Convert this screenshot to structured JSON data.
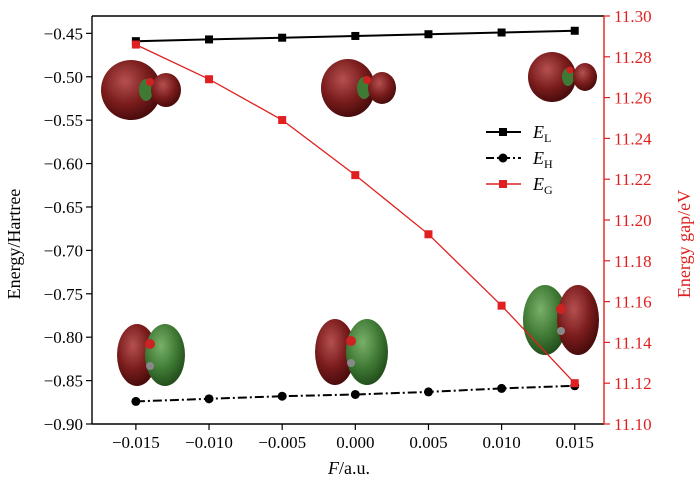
{
  "chart_data": {
    "type": "line",
    "x": [
      -0.015,
      -0.01,
      -0.005,
      0.0,
      0.005,
      0.01,
      0.015
    ],
    "xlabel_italic": "F",
    "xlabel_rest": "/a.u.",
    "ylabel": "Energy/Hartree",
    "y2label": "Energy gap/eV",
    "xlim": [
      -0.018,
      0.017
    ],
    "ylim": [
      -0.9,
      -0.43
    ],
    "y2lim": [
      11.1,
      11.3
    ],
    "xticks": [
      -0.015,
      -0.01,
      -0.005,
      0.0,
      0.005,
      0.01,
      0.015
    ],
    "xtick_labels": [
      "−0.015",
      "−0.010",
      "−0.005",
      "0.000",
      "0.005",
      "0.010",
      "0.015"
    ],
    "yticks": [
      -0.45,
      -0.5,
      -0.55,
      -0.6,
      -0.65,
      -0.7,
      -0.75,
      -0.8,
      -0.85,
      -0.9
    ],
    "ytick_labels": [
      "−0.45",
      "−0.50",
      "−0.55",
      "−0.60",
      "−0.65",
      "−0.70",
      "−0.75",
      "−0.80",
      "−0.85",
      "−0.90"
    ],
    "y2ticks": [
      11.1,
      11.12,
      11.14,
      11.16,
      11.18,
      11.2,
      11.22,
      11.24,
      11.26,
      11.28,
      11.3
    ],
    "y2tick_labels": [
      "11.10",
      "11.12",
      "11.14",
      "11.16",
      "11.18",
      "11.20",
      "11.22",
      "11.24",
      "11.26",
      "11.28",
      "11.30"
    ],
    "legend_position": "right",
    "series": [
      {
        "name": "E",
        "sub": "L",
        "axis": "left",
        "color": "#000000",
        "marker": "square",
        "dash": "solid",
        "values": [
          -0.459,
          -0.457,
          -0.455,
          -0.453,
          -0.451,
          -0.449,
          -0.447
        ]
      },
      {
        "name": "E",
        "sub": "H",
        "axis": "left",
        "color": "#000000",
        "marker": "circle",
        "dash": "dashdot",
        "values": [
          -0.874,
          -0.871,
          -0.868,
          -0.866,
          -0.863,
          -0.859,
          -0.856
        ]
      },
      {
        "name": "E",
        "sub": "G",
        "axis": "right",
        "color": "#e02020",
        "marker": "square",
        "dash": "solid",
        "values": [
          11.286,
          11.269,
          11.249,
          11.222,
          11.193,
          11.158,
          11.12
        ]
      }
    ]
  }
}
